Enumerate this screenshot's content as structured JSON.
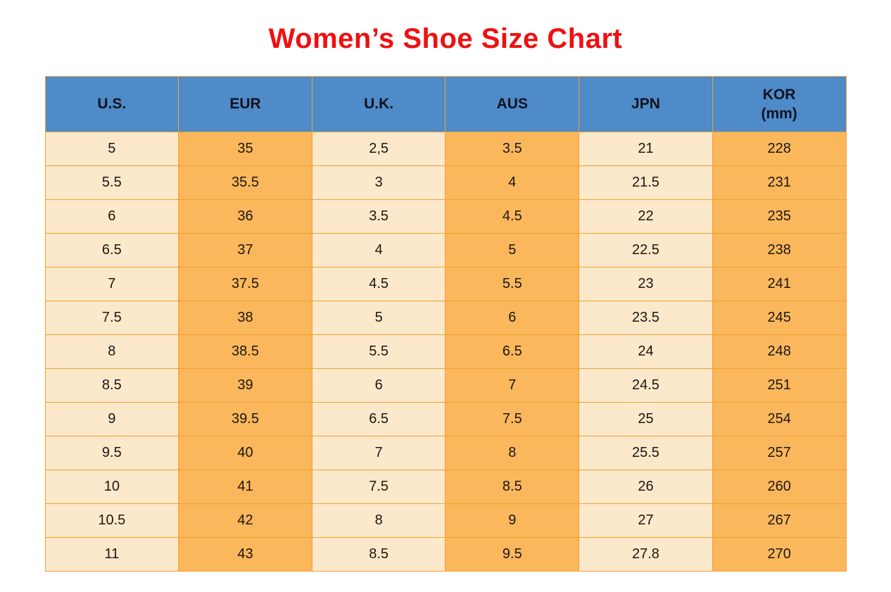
{
  "title": "Women’s Shoe Size Chart",
  "colors": {
    "title_red": "#ee1111",
    "header_blue": "#4e8bc8",
    "column_cream": "#fce8cb",
    "column_orange": "#fab75c",
    "grid_orange": "#f0a232",
    "text_dark": "#1c1712"
  },
  "chart_data": {
    "type": "table",
    "title": "Women’s Shoe Size Chart",
    "columns": [
      "U.S.",
      "EUR",
      "U.K.",
      "AUS",
      "JPN",
      "KOR (mm)"
    ],
    "header": [
      {
        "label": "U.S.",
        "sub": ""
      },
      {
        "label": "EUR",
        "sub": ""
      },
      {
        "label": "U.K.",
        "sub": ""
      },
      {
        "label": "AUS",
        "sub": ""
      },
      {
        "label": "JPN",
        "sub": ""
      },
      {
        "label": "KOR",
        "sub": "(mm)"
      }
    ],
    "rows": [
      [
        "5",
        "35",
        "2,5",
        "3.5",
        "21",
        "228"
      ],
      [
        "5.5",
        "35.5",
        "3",
        "4",
        "21.5",
        "231"
      ],
      [
        "6",
        "36",
        "3.5",
        "4.5",
        "22",
        "235"
      ],
      [
        "6.5",
        "37",
        "4",
        "5",
        "22.5",
        "238"
      ],
      [
        "7",
        "37.5",
        "4.5",
        "5.5",
        "23",
        "241"
      ],
      [
        "7.5",
        "38",
        "5",
        "6",
        "23.5",
        "245"
      ],
      [
        "8",
        "38.5",
        "5.5",
        "6.5",
        "24",
        "248"
      ],
      [
        "8.5",
        "39",
        "6",
        "7",
        "24.5",
        "251"
      ],
      [
        "9",
        "39.5",
        "6.5",
        "7.5",
        "25",
        "254"
      ],
      [
        "9.5",
        "40",
        "7",
        "8",
        "25.5",
        "257"
      ],
      [
        "10",
        "41",
        "7.5",
        "8.5",
        "26",
        "260"
      ],
      [
        "10.5",
        "42",
        "8",
        "9",
        "27",
        "267"
      ],
      [
        "11",
        "43",
        "8.5",
        "9.5",
        "27.8",
        "270"
      ]
    ]
  }
}
